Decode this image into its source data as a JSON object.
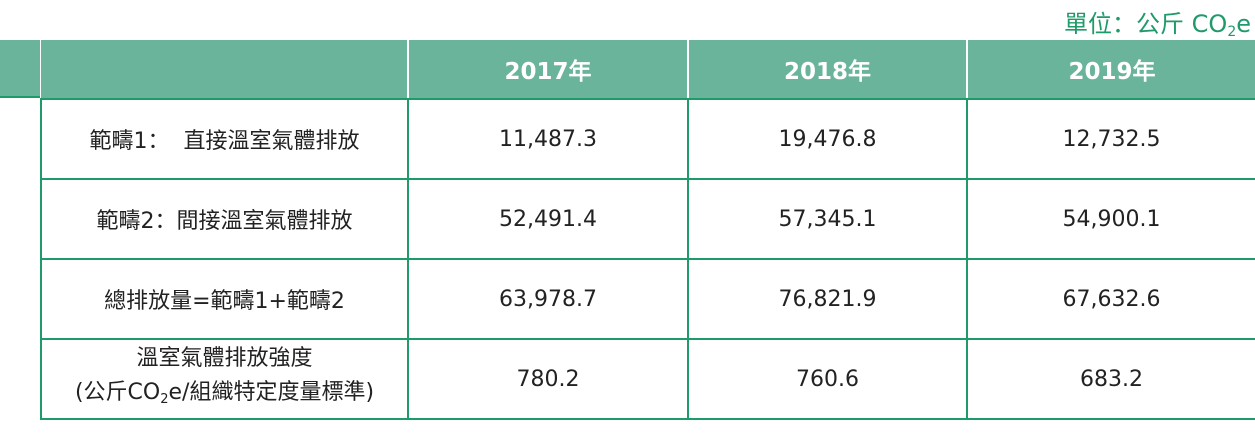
{
  "unit": {
    "prefix": "單位：公斤 CO",
    "sub": "2",
    "suffix": "e"
  },
  "header": {
    "corner": "",
    "years": [
      "2017年",
      "2018年",
      "2019年"
    ]
  },
  "rows": [
    {
      "label": "範疇1：  直接溫室氣體排放",
      "values": [
        "11,487.3",
        "19,476.8",
        "12,732.5"
      ]
    },
    {
      "label": "範疇2：間接溫室氣體排放",
      "values": [
        "52,491.4",
        "57,345.1",
        "54,900.1"
      ]
    },
    {
      "label": "總排放量=範疇1+範疇2",
      "values": [
        "63,978.7",
        "76,821.9",
        "67,632.6"
      ]
    },
    {
      "label_line1": "溫室氣體排放強度",
      "label_line2_prefix": "(公斤CO",
      "label_line2_sub": "2",
      "label_line2_suffix": "e/組織特定度量標準)",
      "values": [
        "780.2",
        "760.6",
        "683.2"
      ]
    }
  ],
  "colors": {
    "header_fill": "#6bb49c",
    "border": "#1f9a6a",
    "unit_text": "#1f9a6a"
  }
}
